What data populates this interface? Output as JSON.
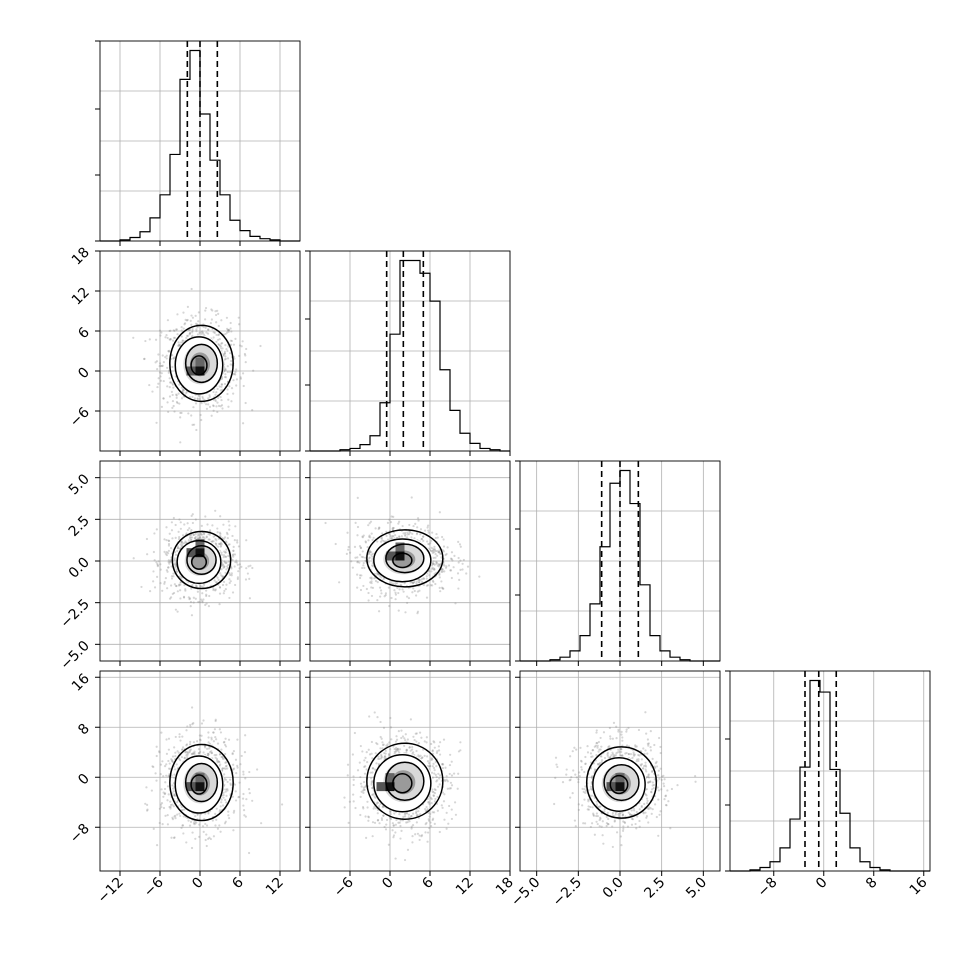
{
  "chart_data": {
    "type": "corner",
    "variables": [
      {
        "range": [
          -15,
          15
        ],
        "ticks": [
          -12,
          -6,
          0,
          6,
          12
        ],
        "tick_labels": [
          "−12",
          "−6",
          "0",
          "6",
          "12"
        ],
        "hist": {
          "edges_start": -15,
          "bin_width": 1.5,
          "counts": [
            0,
            0,
            1,
            3,
            8,
            20,
            40,
            75,
            140,
            165,
            110,
            70,
            40,
            18,
            9,
            4,
            2,
            1,
            0,
            0
          ]
        },
        "quantiles": [
          -1.9,
          0.0,
          2.6
        ]
      },
      {
        "range": [
          -12,
          18
        ],
        "ticks": [
          -6,
          0,
          6,
          12,
          18
        ],
        "tick_labels": [
          "−6",
          "0",
          "6",
          "12",
          "18"
        ],
        "hist": {
          "edges_start": -12,
          "bin_width": 1.5,
          "counts": [
            0,
            0,
            0,
            1,
            2,
            5,
            12,
            38,
            92,
            150,
            150,
            140,
            118,
            64,
            32,
            14,
            6,
            2,
            1,
            0
          ]
        },
        "quantiles": [
          -0.5,
          2.0,
          5.0
        ]
      },
      {
        "range": [
          -6,
          6
        ],
        "ticks": [
          -5,
          -2.5,
          0,
          2.5,
          5
        ],
        "tick_labels": [
          "−5.0",
          "−2.5",
          "0.0",
          "2.5",
          "5.0"
        ],
        "hist": {
          "edges_start": -6,
          "bin_width": 0.6,
          "counts": [
            0,
            0,
            0,
            1,
            3,
            8,
            20,
            45,
            90,
            140,
            150,
            124,
            60,
            20,
            8,
            3,
            1,
            0,
            0,
            0
          ]
        },
        "quantiles": [
          -1.1,
          0.0,
          1.1
        ]
      },
      {
        "range": [
          -15,
          17
        ],
        "ticks": [
          -8,
          0,
          8,
          16
        ],
        "tick_labels": [
          "−8",
          "0",
          "8",
          "16"
        ],
        "hist": {
          "edges_start": -15,
          "bin_width": 1.6,
          "counts": [
            0,
            0,
            1,
            3,
            8,
            20,
            45,
            90,
            165,
            155,
            88,
            50,
            20,
            8,
            3,
            1,
            0,
            0,
            0,
            0
          ]
        },
        "quantiles": [
          -3.0,
          -0.8,
          2.0
        ]
      }
    ],
    "pairs": [
      {
        "row": 1,
        "col": 0,
        "center": [
          0.0,
          1.0
        ],
        "sigma": [
          2.5,
          3.0
        ],
        "peak": [
          0.0,
          0.0
        ]
      },
      {
        "row": 2,
        "col": 0,
        "center": [
          0.0,
          0.0
        ],
        "sigma": [
          2.3,
          0.9
        ],
        "peak": [
          0.0,
          0.5
        ]
      },
      {
        "row": 2,
        "col": 1,
        "center": [
          2.0,
          0.1
        ],
        "sigma": [
          3.0,
          0.9
        ],
        "peak": [
          1.5,
          0.3
        ]
      },
      {
        "row": 3,
        "col": 0,
        "center": [
          0.0,
          -1.0
        ],
        "sigma": [
          2.5,
          3.2
        ],
        "peak": [
          0.0,
          -1.5
        ]
      },
      {
        "row": 3,
        "col": 1,
        "center": [
          2.0,
          -0.8
        ],
        "sigma": [
          3.0,
          3.2
        ],
        "peak": [
          0.0,
          -1.5
        ]
      },
      {
        "row": 3,
        "col": 2,
        "center": [
          0.0,
          -1.0
        ],
        "sigma": [
          1.1,
          3.0
        ],
        "peak": [
          0.0,
          -1.5
        ]
      }
    ],
    "contour_levels_sigma": [
      0.5,
      1.0,
      1.5,
      2.0
    ],
    "grid": true,
    "xlabel": "",
    "ylabel": "",
    "title": ""
  }
}
